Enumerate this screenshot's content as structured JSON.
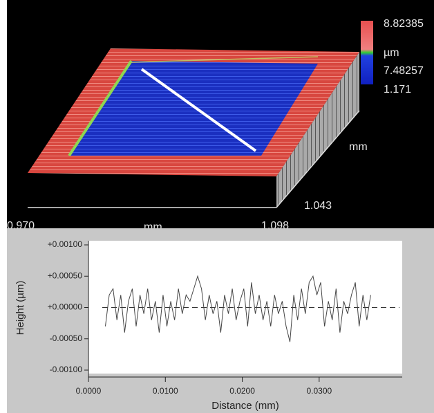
{
  "chart_data": [
    {
      "type": "surface",
      "colorbar_labels": [
        "8.82385",
        "µm",
        "7.48257"
      ],
      "side_labels": [
        "1.171",
        "mm",
        "1.043"
      ],
      "bottom_labels": [
        "0.970",
        "mm",
        "1.098"
      ]
    },
    {
      "type": "line",
      "x_label": "Distance (mm)",
      "y_label": "Height (µm)",
      "color": "#444444",
      "x": [
        0.0022,
        0.0027,
        0.0032,
        0.0037,
        0.0042,
        0.0047,
        0.0052,
        0.0057,
        0.0062,
        0.0067,
        0.0072,
        0.0077,
        0.0082,
        0.0087,
        0.0092,
        0.0097,
        0.0102,
        0.0107,
        0.0112,
        0.0117,
        0.0122,
        0.0127,
        0.0132,
        0.0137,
        0.0142,
        0.0147,
        0.0152,
        0.0157,
        0.0162,
        0.0167,
        0.0172,
        0.0177,
        0.0182,
        0.0187,
        0.0192,
        0.0197,
        0.0202,
        0.0207,
        0.0212,
        0.0217,
        0.0222,
        0.0227,
        0.0232,
        0.0237,
        0.0242,
        0.0247,
        0.0252,
        0.0257,
        0.0262,
        0.0267,
        0.0272,
        0.0277,
        0.0282,
        0.0287,
        0.0292,
        0.0297,
        0.0302,
        0.0307,
        0.0312,
        0.0317,
        0.0322,
        0.0327,
        0.0332,
        0.0337,
        0.0342,
        0.0347,
        0.0352,
        0.0357,
        0.0362,
        0.0367
      ],
      "values": [
        -0.0003,
        0.0002,
        0.0003,
        -0.0002,
        0.0002,
        -0.0004,
        0.0001,
        0.0003,
        -0.0003,
        0.0002,
        -0.0001,
        0.0003,
        -0.0002,
        0.0001,
        -0.0004,
        0.0002,
        -0.0003,
        0.0001,
        -0.0002,
        0.0003,
        -0.0001,
        0.0002,
        0.0001,
        0.0003,
        0.0005,
        0.0003,
        -0.0002,
        0.0002,
        -0.0001,
        0.0001,
        -0.0004,
        0.0002,
        -0.0001,
        0.0003,
        -0.0002,
        0.0001,
        0.0003,
        -0.0003,
        0.0004,
        -0.0001,
        0.0002,
        -0.0002,
        0.0001,
        -0.0003,
        0.0002,
        -0.0001,
        0.0001,
        -0.0003,
        -0.00055,
        0.0002,
        -0.0002,
        0.0003,
        -0.0001,
        0.0004,
        0.0005,
        0.0002,
        0.0004,
        -0.0003,
        0.0001,
        -0.0002,
        0.0003,
        -0.0004,
        0.0001,
        -0.0001,
        0.0002,
        0.0004,
        -0.0003,
        0.0002,
        -0.0002,
        0.0002
      ],
      "xlim": [
        0,
        0.0408
      ],
      "ylim": [
        -0.001,
        0.001
      ],
      "xticks": [
        {
          "value": 0,
          "label": "0.0000"
        },
        {
          "value": 0.01,
          "label": "0.0100"
        },
        {
          "value": 0.02,
          "label": "0.0200"
        },
        {
          "value": 0.03,
          "label": "0.0300"
        }
      ],
      "yticks": [
        {
          "value": 0.001,
          "label": "+0.00100"
        },
        {
          "value": 0.0005,
          "label": "+0.00050"
        },
        {
          "value": 0,
          "label": "+0.00000"
        },
        {
          "value": -0.0005,
          "label": "-0.00050"
        },
        {
          "value": -0.001,
          "label": "-0.00100"
        }
      ]
    }
  ]
}
